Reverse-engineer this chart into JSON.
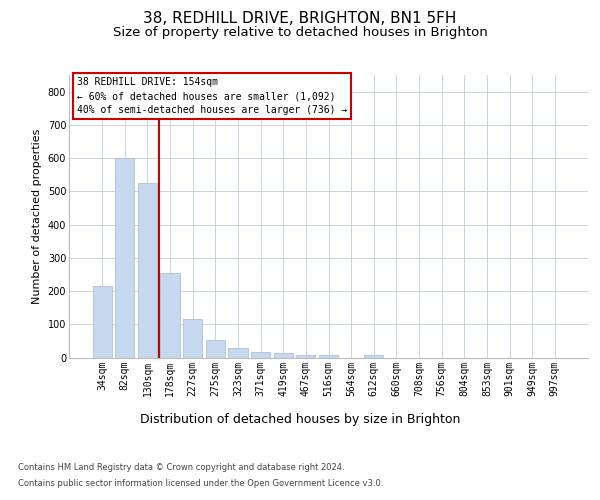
{
  "title": "38, REDHILL DRIVE, BRIGHTON, BN1 5FH",
  "subtitle": "Size of property relative to detached houses in Brighton",
  "xlabel": "Distribution of detached houses by size in Brighton",
  "ylabel": "Number of detached properties",
  "categories": [
    "34sqm",
    "82sqm",
    "130sqm",
    "178sqm",
    "227sqm",
    "275sqm",
    "323sqm",
    "371sqm",
    "419sqm",
    "467sqm",
    "516sqm",
    "564sqm",
    "612sqm",
    "660sqm",
    "708sqm",
    "756sqm",
    "804sqm",
    "853sqm",
    "901sqm",
    "949sqm",
    "997sqm"
  ],
  "values": [
    215,
    600,
    525,
    255,
    115,
    53,
    30,
    18,
    13,
    9,
    7,
    0,
    8,
    0,
    0,
    0,
    0,
    0,
    0,
    0,
    0
  ],
  "bar_color": "#c5d8ed",
  "bar_edge_color": "#a0bcd4",
  "bg_color": "#ffffff",
  "grid_color": "#c8d4e0",
  "red_line_x": 2.5,
  "annotation_text": "38 REDHILL DRIVE: 154sqm\n← 60% of detached houses are smaller (1,092)\n40% of semi-detached houses are larger (736) →",
  "annotation_box_color": "#cc0000",
  "ylim": [
    0,
    850
  ],
  "yticks": [
    0,
    100,
    200,
    300,
    400,
    500,
    600,
    700,
    800
  ],
  "footer_line1": "Contains HM Land Registry data © Crown copyright and database right 2024.",
  "footer_line2": "Contains public sector information licensed under the Open Government Licence v3.0.",
  "title_fontsize": 11,
  "subtitle_fontsize": 9.5,
  "tick_fontsize": 7,
  "ylabel_fontsize": 8,
  "xlabel_fontsize": 9,
  "annotation_fontsize": 7,
  "footer_fontsize": 6
}
